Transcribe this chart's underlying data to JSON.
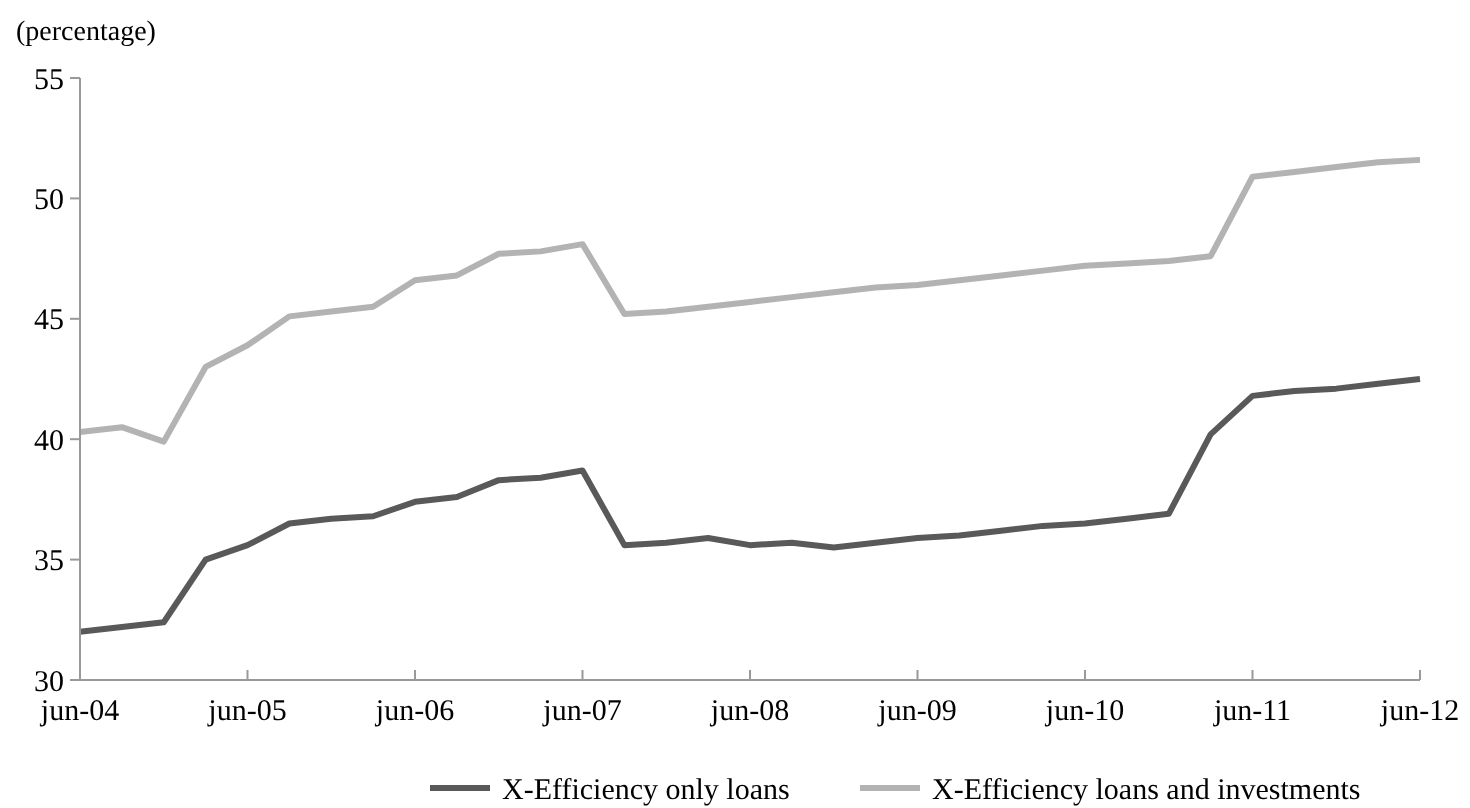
{
  "chart_data": {
    "type": "line",
    "ylabel": "(percentage)",
    "categories": [
      "jun-04",
      null,
      null,
      null,
      "jun-05",
      null,
      null,
      null,
      "jun-06",
      null,
      null,
      null,
      "jun-07",
      null,
      null,
      null,
      "jun-08",
      null,
      null,
      null,
      "jun-09",
      null,
      null,
      null,
      "jun-10",
      null,
      null,
      null,
      "jun-11",
      null,
      null,
      null,
      "jun-12"
    ],
    "series": [
      {
        "name": "X-Efficiency only loans",
        "color": "#595959",
        "values": [
          32.0,
          32.2,
          32.4,
          35.0,
          35.6,
          36.5,
          36.7,
          36.8,
          37.4,
          37.6,
          38.3,
          38.4,
          38.7,
          35.6,
          35.7,
          35.9,
          35.6,
          35.7,
          35.5,
          35.7,
          35.9,
          36.0,
          36.2,
          36.4,
          36.5,
          36.7,
          36.9,
          40.2,
          41.8,
          42.0,
          42.1,
          42.3,
          42.5
        ]
      },
      {
        "name": "X-Efficiency loans and investments",
        "color": "#b3b3b3",
        "values": [
          40.3,
          40.5,
          39.9,
          43.0,
          43.9,
          45.1,
          45.3,
          45.5,
          46.6,
          46.8,
          47.7,
          47.8,
          48.1,
          45.2,
          45.3,
          45.5,
          45.7,
          45.9,
          46.1,
          46.3,
          46.4,
          46.6,
          46.8,
          47.0,
          47.2,
          47.3,
          47.4,
          47.6,
          50.9,
          51.1,
          51.3,
          51.5,
          51.6
        ]
      }
    ],
    "ylim": [
      30,
      55
    ],
    "yticks": [
      30,
      35,
      40,
      45,
      50,
      55
    ],
    "grid": false,
    "legend": "bottom",
    "marker": "none",
    "line_style": "solid"
  }
}
